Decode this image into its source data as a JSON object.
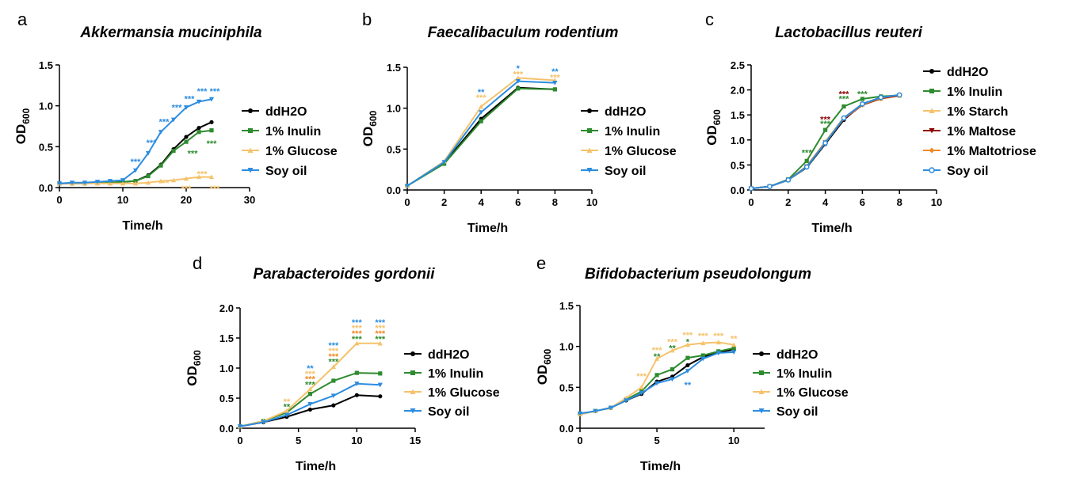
{
  "chart_data": [
    {
      "type": "line",
      "panel_letter": "a",
      "title": "Akkermansia muciniphila",
      "xlabel": "Time/h",
      "ylabel": "OD",
      "ylabel_sub": "600",
      "xlim": [
        0,
        30
      ],
      "ylim": [
        0,
        1.5
      ],
      "xticks": [
        "0",
        "10",
        "20",
        "30"
      ],
      "yticks": [
        "0.0",
        "0.5",
        "1.0",
        "1.5"
      ],
      "legend_placement": "right",
      "series": [
        {
          "name": "ddH2O",
          "color": "#000000",
          "marker": "circle",
          "x": [
            0,
            2,
            4,
            6,
            8,
            10,
            12,
            14,
            16,
            18,
            20,
            22,
            24
          ],
          "y": [
            0.05,
            0.05,
            0.05,
            0.06,
            0.06,
            0.07,
            0.08,
            0.15,
            0.28,
            0.47,
            0.62,
            0.73,
            0.8
          ]
        },
        {
          "name": "1% Inulin",
          "color": "#2e8b2e",
          "marker": "square",
          "x": [
            0,
            2,
            4,
            6,
            8,
            10,
            12,
            14,
            16,
            18,
            20,
            22,
            24
          ],
          "y": [
            0.05,
            0.05,
            0.05,
            0.06,
            0.06,
            0.07,
            0.08,
            0.14,
            0.27,
            0.45,
            0.56,
            0.68,
            0.7
          ]
        },
        {
          "name": "1% Glucose",
          "color": "#f5c26b",
          "marker": "triangle",
          "x": [
            0,
            2,
            4,
            6,
            8,
            10,
            12,
            14,
            16,
            18,
            20,
            22,
            24
          ],
          "y": [
            0.05,
            0.05,
            0.05,
            0.05,
            0.05,
            0.05,
            0.05,
            0.06,
            0.08,
            0.09,
            0.11,
            0.13,
            0.13
          ]
        },
        {
          "name": "Soy oil",
          "color": "#2b8ce0",
          "marker": "triangle-down",
          "x": [
            0,
            2,
            4,
            6,
            8,
            10,
            12,
            14,
            16,
            18,
            20,
            22,
            24
          ],
          "y": [
            0.05,
            0.06,
            0.06,
            0.07,
            0.08,
            0.09,
            0.21,
            0.42,
            0.68,
            0.83,
            0.98,
            1.05,
            1.08
          ]
        }
      ],
      "annotations": [
        {
          "x": 12,
          "y": 0.32,
          "text": "***",
          "color": "#2b8ce0"
        },
        {
          "x": 14.5,
          "y": 0.55,
          "text": "***",
          "color": "#2b8ce0"
        },
        {
          "x": 16.5,
          "y": 0.81,
          "text": "***",
          "color": "#2b8ce0"
        },
        {
          "x": 18.5,
          "y": 0.98,
          "text": "***",
          "color": "#2b8ce0"
        },
        {
          "x": 20.5,
          "y": 1.09,
          "text": "***",
          "color": "#2b8ce0"
        },
        {
          "x": 22.5,
          "y": 1.18,
          "text": "***",
          "color": "#2b8ce0"
        },
        {
          "x": 24.5,
          "y": 1.18,
          "text": "***",
          "color": "#2b8ce0"
        },
        {
          "x": 21,
          "y": 0.42,
          "text": "***",
          "color": "#2e8b2e"
        },
        {
          "x": 24,
          "y": 0.54,
          "text": "***",
          "color": "#2e8b2e"
        },
        {
          "x": 16.5,
          "y": 0.06,
          "text": "***",
          "color": "#f5c26b"
        },
        {
          "x": 20,
          "y": -0.01,
          "text": "***",
          "color": "#f5c26b"
        },
        {
          "x": 22.5,
          "y": 0.17,
          "text": "***",
          "color": "#f5c26b"
        },
        {
          "x": 24.5,
          "y": -0.01,
          "text": "***",
          "color": "#f5c26b"
        }
      ]
    },
    {
      "type": "line",
      "panel_letter": "b",
      "title": "Faecalibaculum rodentium",
      "xlabel": "Time/h",
      "ylabel": "OD",
      "ylabel_sub": "600",
      "xlim": [
        0,
        10
      ],
      "ylim": [
        0,
        1.5
      ],
      "xticks": [
        "0",
        "2",
        "4",
        "6",
        "8",
        "10"
      ],
      "yticks": [
        "0.0",
        "0.5",
        "1.0",
        "1.5"
      ],
      "legend_placement": "right",
      "series": [
        {
          "name": "ddH2O",
          "color": "#000000",
          "marker": "circle",
          "x": [
            0,
            2,
            4,
            6,
            8
          ],
          "y": [
            0.05,
            0.33,
            0.87,
            1.25,
            1.23
          ]
        },
        {
          "name": "1% Inulin",
          "color": "#2e8b2e",
          "marker": "square",
          "x": [
            0,
            2,
            4,
            6,
            8
          ],
          "y": [
            0.05,
            0.32,
            0.84,
            1.24,
            1.23
          ]
        },
        {
          "name": "1% Glucose",
          "color": "#f5c26b",
          "marker": "triangle",
          "x": [
            0,
            2,
            4,
            6,
            8
          ],
          "y": [
            0.05,
            0.35,
            1.02,
            1.37,
            1.34
          ]
        },
        {
          "name": "Soy oil",
          "color": "#2b8ce0",
          "marker": "triangle-down",
          "x": [
            0,
            2,
            4,
            6,
            8
          ],
          "y": [
            0.05,
            0.34,
            0.95,
            1.33,
            1.31
          ]
        }
      ],
      "annotations": [
        {
          "x": 4,
          "y": 1.2,
          "text": "**",
          "color": "#2b8ce0"
        },
        {
          "x": 4,
          "y": 1.13,
          "text": "***",
          "color": "#f5c26b"
        },
        {
          "x": 6,
          "y": 1.49,
          "text": "*",
          "color": "#2b8ce0"
        },
        {
          "x": 6,
          "y": 1.42,
          "text": "***",
          "color": "#f5c26b"
        },
        {
          "x": 8,
          "y": 1.45,
          "text": "**",
          "color": "#2b8ce0"
        },
        {
          "x": 8,
          "y": 1.38,
          "text": "***",
          "color": "#f5c26b"
        }
      ]
    },
    {
      "type": "line",
      "panel_letter": "c",
      "title": "Lactobacillus reuteri",
      "xlabel": "Time/h",
      "ylabel": "OD",
      "ylabel_sub": "600",
      "xlim": [
        0,
        10
      ],
      "ylim": [
        0,
        2.5
      ],
      "xticks": [
        "0",
        "2",
        "4",
        "6",
        "8",
        "10"
      ],
      "yticks": [
        "0.0",
        "0.5",
        "1.0",
        "1.5",
        "2.0",
        "2.5"
      ],
      "legend_placement": "right",
      "series": [
        {
          "name": "ddH2O",
          "color": "#000000",
          "marker": "circle",
          "x": [
            0,
            1,
            2,
            3,
            4,
            5,
            6,
            7,
            8
          ],
          "y": [
            0.03,
            0.07,
            0.2,
            0.45,
            0.92,
            1.4,
            1.72,
            1.85,
            1.9
          ]
        },
        {
          "name": "1% Inulin",
          "color": "#2e8b2e",
          "marker": "square",
          "x": [
            0,
            1,
            2,
            3,
            4,
            5,
            6,
            7,
            8
          ],
          "y": [
            0.03,
            0.07,
            0.21,
            0.58,
            1.2,
            1.67,
            1.82,
            1.87,
            1.89
          ]
        },
        {
          "name": "1% Starch",
          "color": "#f5c26b",
          "marker": "triangle",
          "x": [
            0,
            1,
            2,
            3,
            4,
            5,
            6,
            7,
            8
          ],
          "y": [
            0.03,
            0.07,
            0.2,
            0.47,
            0.97,
            1.45,
            1.7,
            1.82,
            1.88
          ]
        },
        {
          "name": "1% Maltose",
          "color": "#8b0000",
          "marker": "triangle-down",
          "x": [
            0,
            1,
            2,
            3,
            4,
            5,
            6,
            7,
            8
          ],
          "y": [
            0.03,
            0.07,
            0.2,
            0.47,
            0.95,
            1.42,
            1.7,
            1.83,
            1.89
          ]
        },
        {
          "name": "1% Maltotriose",
          "color": "#f08a24",
          "marker": "diamond",
          "x": [
            0,
            1,
            2,
            3,
            4,
            5,
            6,
            7,
            8
          ],
          "y": [
            0.03,
            0.07,
            0.2,
            0.46,
            0.95,
            1.43,
            1.71,
            1.84,
            1.9
          ]
        },
        {
          "name": "Soy oil",
          "color": "#2b8ce0",
          "marker": "circle-open",
          "x": [
            0,
            1,
            2,
            3,
            4,
            5,
            6,
            7,
            8
          ],
          "y": [
            0.03,
            0.07,
            0.2,
            0.46,
            0.94,
            1.44,
            1.72,
            1.85,
            1.9
          ]
        }
      ],
      "annotations": [
        {
          "x": 3,
          "y": 0.75,
          "text": "***",
          "color": "#2e8b2e"
        },
        {
          "x": 4,
          "y": 1.42,
          "text": "***",
          "color": "#8b0000"
        },
        {
          "x": 4,
          "y": 1.33,
          "text": "***",
          "color": "#2e8b2e"
        },
        {
          "x": 5,
          "y": 1.92,
          "text": "***",
          "color": "#8b0000"
        },
        {
          "x": 5,
          "y": 1.83,
          "text": "***",
          "color": "#2e8b2e"
        },
        {
          "x": 6,
          "y": 1.92,
          "text": "***",
          "color": "#2e8b2e"
        }
      ]
    },
    {
      "type": "line",
      "panel_letter": "d",
      "title": "Parabacteroides gordonii",
      "xlabel": "Time/h",
      "ylabel": "OD",
      "ylabel_sub": "600",
      "xlim": [
        0,
        15
      ],
      "ylim": [
        0,
        2.0
      ],
      "xticks": [
        "0",
        "5",
        "10",
        "15"
      ],
      "yticks": [
        "0.0",
        "0.5",
        "1.0",
        "1.5",
        "2.0"
      ],
      "legend_placement": "right",
      "series": [
        {
          "name": "ddH2O",
          "color": "#000000",
          "marker": "circle",
          "x": [
            0,
            2,
            4,
            6,
            8,
            10,
            12
          ],
          "y": [
            0.03,
            0.1,
            0.19,
            0.31,
            0.38,
            0.55,
            0.53
          ]
        },
        {
          "name": "1% Inulin",
          "color": "#2e8b2e",
          "marker": "square",
          "x": [
            0,
            2,
            4,
            6,
            8,
            10,
            12
          ],
          "y": [
            0.03,
            0.12,
            0.26,
            0.57,
            0.79,
            0.92,
            0.91
          ]
        },
        {
          "name": "1% Glucose",
          "color": "#f5c26b",
          "marker": "triangle",
          "x": [
            0,
            2,
            4,
            6,
            8,
            10,
            12
          ],
          "y": [
            0.03,
            0.12,
            0.29,
            0.65,
            1.02,
            1.41,
            1.41
          ]
        },
        {
          "name": "Soy oil",
          "color": "#2b8ce0",
          "marker": "triangle-down",
          "x": [
            0,
            2,
            4,
            6,
            8,
            10,
            12
          ],
          "y": [
            0.03,
            0.1,
            0.22,
            0.4,
            0.54,
            0.74,
            0.72
          ]
        }
      ],
      "annotations": [
        {
          "x": 4,
          "y": 0.45,
          "text": "**",
          "color": "#f5c26b"
        },
        {
          "x": 4,
          "y": 0.36,
          "text": "**",
          "color": "#2e8b2e"
        },
        {
          "x": 6,
          "y": 1.0,
          "text": "**",
          "color": "#2b8ce0"
        },
        {
          "x": 6,
          "y": 0.91,
          "text": "***",
          "color": "#f5c26b"
        },
        {
          "x": 6,
          "y": 0.82,
          "text": "***",
          "color": "#f08a24"
        },
        {
          "x": 6,
          "y": 0.73,
          "text": "***",
          "color": "#2e8b2e"
        },
        {
          "x": 8,
          "y": 1.38,
          "text": "***",
          "color": "#2b8ce0"
        },
        {
          "x": 8,
          "y": 1.29,
          "text": "***",
          "color": "#f5c26b"
        },
        {
          "x": 8,
          "y": 1.2,
          "text": "***",
          "color": "#f08a24"
        },
        {
          "x": 8,
          "y": 1.11,
          "text": "***",
          "color": "#2e8b2e"
        },
        {
          "x": 10,
          "y": 1.76,
          "text": "***",
          "color": "#2b8ce0"
        },
        {
          "x": 10,
          "y": 1.67,
          "text": "***",
          "color": "#f5c26b"
        },
        {
          "x": 10,
          "y": 1.58,
          "text": "***",
          "color": "#f08a24"
        },
        {
          "x": 10,
          "y": 1.49,
          "text": "***",
          "color": "#2e8b2e"
        },
        {
          "x": 12,
          "y": 1.76,
          "text": "***",
          "color": "#2b8ce0"
        },
        {
          "x": 12,
          "y": 1.67,
          "text": "***",
          "color": "#f5c26b"
        },
        {
          "x": 12,
          "y": 1.58,
          "text": "***",
          "color": "#f08a24"
        },
        {
          "x": 12,
          "y": 1.49,
          "text": "***",
          "color": "#2e8b2e"
        }
      ]
    },
    {
      "type": "line",
      "panel_letter": "e",
      "title": "Bifidobacterium pseudolongum",
      "xlabel": "Time/h",
      "ylabel": "OD",
      "ylabel_sub": "600",
      "xlim": [
        0,
        12
      ],
      "ylim": [
        0,
        1.5
      ],
      "xticks": [
        "0",
        "5",
        "10"
      ],
      "yticks": [
        "0.0",
        "0.5",
        "1.0",
        "1.5"
      ],
      "legend_placement": "right",
      "series": [
        {
          "name": "ddH2O",
          "color": "#000000",
          "marker": "circle",
          "x": [
            0,
            1,
            2,
            3,
            4,
            5,
            6,
            7,
            8,
            9,
            10
          ],
          "y": [
            0.17,
            0.21,
            0.25,
            0.34,
            0.42,
            0.57,
            0.63,
            0.77,
            0.87,
            0.93,
            0.96
          ]
        },
        {
          "name": "1% Inulin",
          "color": "#2e8b2e",
          "marker": "square",
          "x": [
            0,
            1,
            2,
            3,
            4,
            5,
            6,
            7,
            8,
            9,
            10
          ],
          "y": [
            0.17,
            0.21,
            0.25,
            0.35,
            0.45,
            0.65,
            0.72,
            0.86,
            0.89,
            0.94,
            0.98
          ]
        },
        {
          "name": "1% Glucose",
          "color": "#f5c26b",
          "marker": "triangle",
          "x": [
            0,
            1,
            2,
            3,
            4,
            5,
            6,
            7,
            8,
            9,
            10
          ],
          "y": [
            0.17,
            0.21,
            0.25,
            0.37,
            0.5,
            0.85,
            0.95,
            1.02,
            1.04,
            1.05,
            1.02
          ]
        },
        {
          "name": "Soy oil",
          "color": "#2b8ce0",
          "marker": "triangle-down",
          "x": [
            0,
            1,
            2,
            3,
            4,
            5,
            6,
            7,
            8,
            9,
            10
          ],
          "y": [
            0.18,
            0.21,
            0.25,
            0.34,
            0.43,
            0.55,
            0.6,
            0.7,
            0.85,
            0.92,
            0.93
          ]
        }
      ],
      "annotations": [
        {
          "x": 4,
          "y": 0.64,
          "text": "***",
          "color": "#f5c26b"
        },
        {
          "x": 5,
          "y": 0.96,
          "text": "***",
          "color": "#f5c26b"
        },
        {
          "x": 5,
          "y": 0.88,
          "text": "**",
          "color": "#2e8b2e"
        },
        {
          "x": 6,
          "y": 1.06,
          "text": "***",
          "color": "#f5c26b"
        },
        {
          "x": 6,
          "y": 0.98,
          "text": "**",
          "color": "#2e8b2e"
        },
        {
          "x": 7,
          "y": 1.14,
          "text": "***",
          "color": "#f5c26b"
        },
        {
          "x": 7,
          "y": 1.06,
          "text": "*",
          "color": "#2e8b2e"
        },
        {
          "x": 7,
          "y": 0.53,
          "text": "**",
          "color": "#2b8ce0"
        },
        {
          "x": 8,
          "y": 1.13,
          "text": "***",
          "color": "#f5c26b"
        },
        {
          "x": 9,
          "y": 1.13,
          "text": "***",
          "color": "#f5c26b"
        },
        {
          "x": 10,
          "y": 1.1,
          "text": "**",
          "color": "#f5c26b"
        }
      ]
    }
  ]
}
